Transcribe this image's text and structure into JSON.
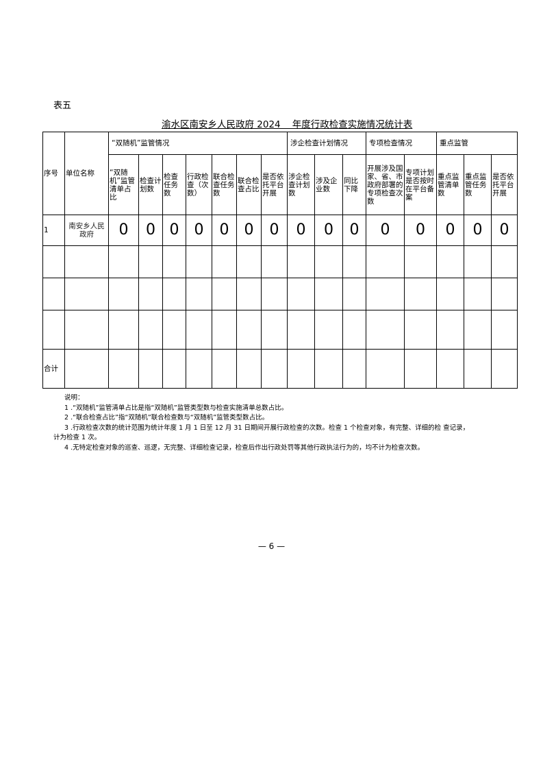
{
  "table_label": "表五",
  "title": "渝水区南安乡人民政府 2024    年度行政检查实施情况统计表",
  "table": {
    "col_seq": "序号",
    "col_unit": "单位名称",
    "groups": [
      "“双随机”监管情况",
      "涉企检查计划情况",
      "专项检查情况",
      "重点监管"
    ],
    "headers": [
      "“双随机”监管清单占比",
      "检查计划数",
      "检查任务数",
      "行政检查（次数）",
      "联合检查任务数",
      "联合检查占比",
      "是否依托平台开展",
      "涉企检查计划数",
      "涉及企业数",
      "同比下降",
      "开展涉及国家、省、市政府部署的专项检查次数",
      "专项计划是否按时在平台备案",
      "重点监管清单数",
      "重点监管任务数",
      "是否依托平台开展"
    ],
    "rows": [
      {
        "seq": "1",
        "unit": "南安乡人民政府",
        "values": [
          "0",
          "0",
          "0",
          "0",
          "0",
          "0",
          "0",
          "0",
          "0",
          "0",
          "0",
          "0",
          "0",
          "0",
          "0"
        ]
      }
    ],
    "total_label": "合计"
  },
  "notes": {
    "heading": "说明：",
    "items": [
      "1  .“双随机”监管清单占比是指“双随机”监管类型数与检查实施清单总数占比。",
      "2  .“联合检查占比”指“双随机”联合检查数与“双随机”监管类型数占比。",
      "3  .行政检查次数的统计范围为统计年度 1 月 1 日至 12 月 31 日期间开展行政检查的次数。检查 1 个检查对象，有完整、详细的检 查记录，",
      "4  .无特定检查对象的巡查、巡逻，无完整、详细检查记录，检查后作出行政处罚等其他行政执法行为的，均不计为检查次数。"
    ],
    "item3_cont": "计为检查 1 次。"
  },
  "page_number": "— 6 —"
}
